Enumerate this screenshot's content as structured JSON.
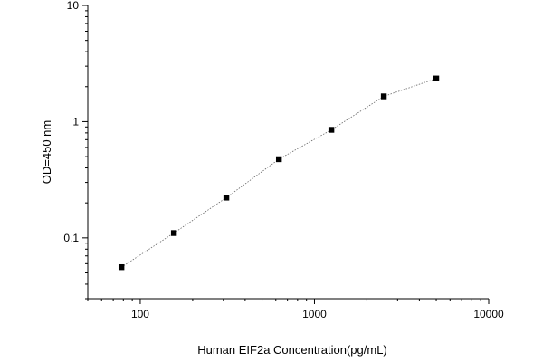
{
  "chart_data": {
    "type": "scatter",
    "title": "",
    "xlabel": "Human EIF2a Concentration(pg/mL)",
    "ylabel": "OD=450 nm",
    "x_scale": "log",
    "y_scale": "log",
    "xlim": [
      50,
      10000
    ],
    "ylim": [
      0.03,
      10
    ],
    "x_ticks": [
      {
        "value": 100,
        "label": "100"
      },
      {
        "value": 1000,
        "label": "1000"
      },
      {
        "value": 10000,
        "label": "10000"
      }
    ],
    "y_ticks": [
      {
        "value": 0.1,
        "label": "0.1"
      },
      {
        "value": 1,
        "label": "1"
      },
      {
        "value": 10,
        "label": "10"
      }
    ],
    "grid": false,
    "legend": "none",
    "series": [
      {
        "x": [
          78,
          156,
          312,
          625,
          1250,
          2500,
          5000
        ],
        "y": [
          0.056,
          0.11,
          0.222,
          0.475,
          0.85,
          1.65,
          2.35
        ],
        "marker": "square",
        "line": "dotted",
        "color": "#000000"
      }
    ]
  }
}
